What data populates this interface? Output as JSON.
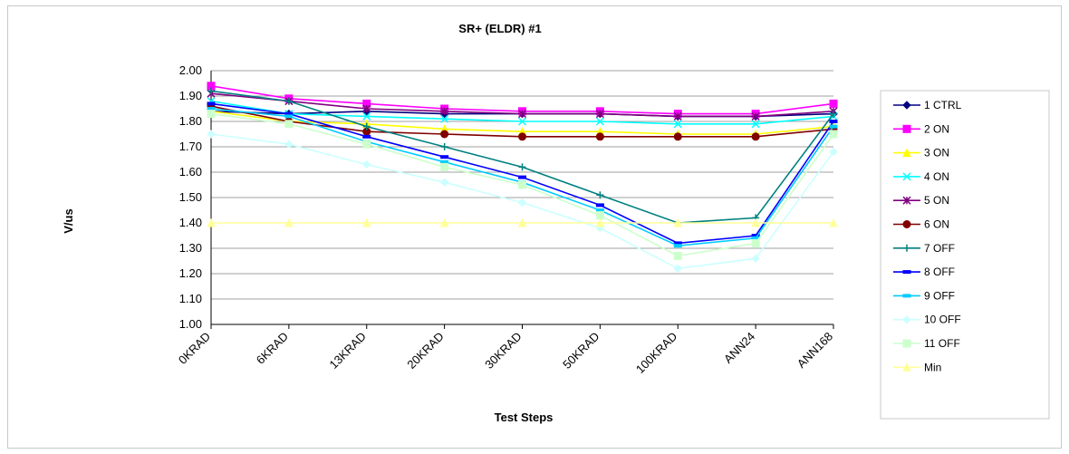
{
  "chart_data": {
    "type": "line",
    "title": "SR+ (ELDR) #1",
    "xlabel": "Test Steps",
    "ylabel": "V/us",
    "ylim": [
      1.0,
      2.0
    ],
    "yticks": [
      "1.00",
      "1.10",
      "1.20",
      "1.30",
      "1.40",
      "1.50",
      "1.60",
      "1.70",
      "1.80",
      "1.90",
      "2.00"
    ],
    "grid": "horizontal",
    "legend_position": "right",
    "categories": [
      "0KRAD",
      "6KRAD",
      "13KRAD",
      "20KRAD",
      "30KRAD",
      "50KRAD",
      "100KRAD",
      "ANN24",
      "ANN168"
    ],
    "series": [
      {
        "name": "1 CTRL",
        "color": "#000080",
        "marker": "diamond",
        "values": [
          1.84,
          1.83,
          1.84,
          1.83,
          1.83,
          1.83,
          1.82,
          1.82,
          1.83
        ]
      },
      {
        "name": "2 ON",
        "color": "#ff00ff",
        "marker": "square",
        "values": [
          1.94,
          1.89,
          1.87,
          1.85,
          1.84,
          1.84,
          1.83,
          1.83,
          1.87
        ]
      },
      {
        "name": "3 ON",
        "color": "#ffff00",
        "marker": "triangle",
        "values": [
          1.84,
          1.8,
          1.79,
          1.77,
          1.76,
          1.76,
          1.75,
          1.75,
          1.78
        ]
      },
      {
        "name": "4 ON",
        "color": "#00ffff",
        "marker": "x",
        "values": [
          1.88,
          1.83,
          1.82,
          1.81,
          1.8,
          1.8,
          1.79,
          1.79,
          1.82
        ]
      },
      {
        "name": "5 ON",
        "color": "#800080",
        "marker": "star",
        "values": [
          1.91,
          1.88,
          1.85,
          1.84,
          1.83,
          1.83,
          1.82,
          1.82,
          1.84
        ]
      },
      {
        "name": "6 ON",
        "color": "#800000",
        "marker": "circle",
        "values": [
          1.86,
          1.8,
          1.76,
          1.75,
          1.74,
          1.74,
          1.74,
          1.74,
          1.77
        ]
      },
      {
        "name": "7 OFF",
        "color": "#008080",
        "marker": "plus",
        "values": [
          1.92,
          1.88,
          1.78,
          1.7,
          1.62,
          1.51,
          1.4,
          1.42,
          1.83
        ]
      },
      {
        "name": "8 OFF",
        "color": "#0000ff",
        "marker": "dash",
        "values": [
          1.87,
          1.83,
          1.74,
          1.66,
          1.58,
          1.47,
          1.32,
          1.35,
          1.8
        ]
      },
      {
        "name": "9 OFF",
        "color": "#00ccff",
        "marker": "dash",
        "values": [
          1.85,
          1.82,
          1.72,
          1.64,
          1.56,
          1.45,
          1.31,
          1.34,
          1.78
        ]
      },
      {
        "name": "10 OFF",
        "color": "#ccffff",
        "marker": "diamond",
        "values": [
          1.75,
          1.71,
          1.63,
          1.56,
          1.48,
          1.38,
          1.22,
          1.26,
          1.68
        ]
      },
      {
        "name": "11 OFF",
        "color": "#ccffcc",
        "marker": "square",
        "values": [
          1.83,
          1.79,
          1.71,
          1.62,
          1.55,
          1.43,
          1.27,
          1.32,
          1.75
        ]
      },
      {
        "name": "Min",
        "color": "#ffff99",
        "marker": "triangle",
        "values": [
          1.4,
          1.4,
          1.4,
          1.4,
          1.4,
          1.4,
          1.4,
          1.4,
          1.4
        ]
      }
    ]
  }
}
